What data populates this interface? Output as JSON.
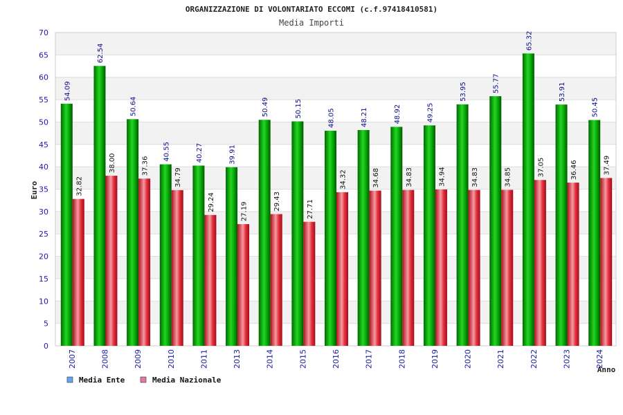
{
  "chart_data": {
    "type": "bar",
    "title": "ORGANIZZAZIONE DI VOLONTARIATO ECCOMI (c.f.97418410581)",
    "subtitle": "Media Importi",
    "xlabel": "Anno",
    "ylabel": "Euro",
    "ylim": [
      0,
      70
    ],
    "ytick_step": 5,
    "grid": true,
    "legend_position": "bottom-left",
    "categories": [
      "2007",
      "2008",
      "2009",
      "2010",
      "2011",
      "2013",
      "2014",
      "2015",
      "2016",
      "2017",
      "2018",
      "2019",
      "2020",
      "2021",
      "2022",
      "2023",
      "2024"
    ],
    "series": [
      {
        "name": "Media Ente",
        "legend_color": "#5fa8f0",
        "bar_color": "#0aa80a",
        "values": [
          54.09,
          62.54,
          50.64,
          40.55,
          40.27,
          39.91,
          50.49,
          50.15,
          48.05,
          48.21,
          48.92,
          49.25,
          53.95,
          55.77,
          65.32,
          53.91,
          50.45
        ],
        "labels": [
          "54.09",
          "62.54",
          "50.64",
          "40.55",
          "40.27",
          "39.91",
          "50.49",
          "50.15",
          "48.05",
          "48.21",
          "48.92",
          "49.25",
          "53.95",
          "55.77",
          "65.32",
          "53.91",
          "50.45"
        ]
      },
      {
        "name": "Media Nazionale",
        "legend_color": "#e07aa8",
        "bar_color": "#e3303f",
        "values": [
          32.82,
          38.0,
          37.36,
          34.79,
          29.24,
          27.19,
          29.43,
          27.71,
          34.32,
          34.68,
          34.83,
          34.94,
          34.83,
          34.85,
          37.05,
          36.46,
          37.49
        ],
        "labels": [
          "32.82",
          "38.00",
          "37.36",
          "34.79",
          "29.24",
          "27.19",
          "29.43",
          "27.71",
          "34.32",
          "34.68",
          "34.83",
          "34.94",
          "34.83",
          "34.85",
          "37.05",
          "36.46",
          "37.49"
        ]
      }
    ]
  }
}
